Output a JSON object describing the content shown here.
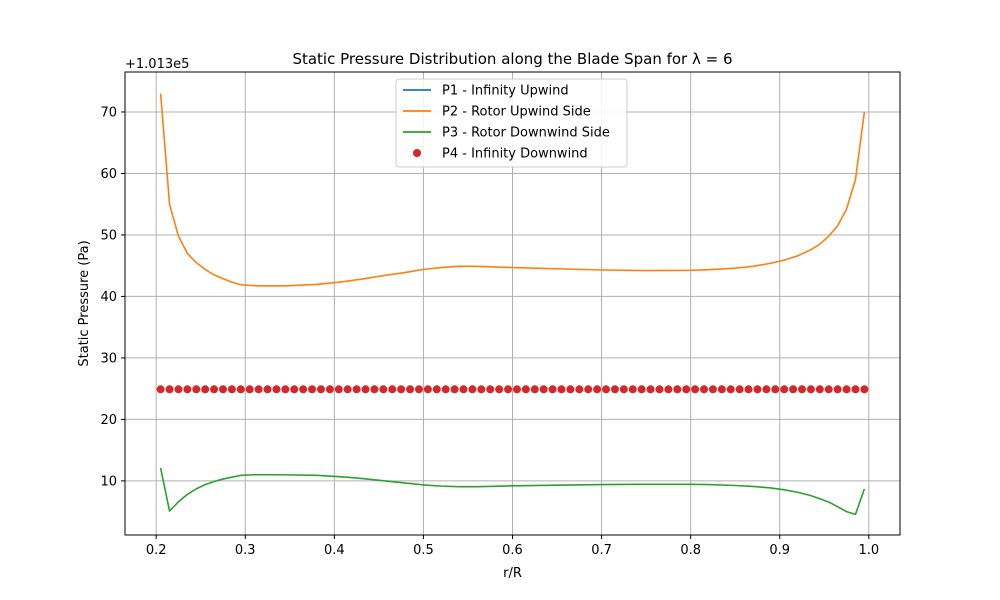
{
  "chart_data": {
    "type": "line",
    "title": "Static Pressure Distribution along the Blade Span for λ = 6",
    "xlabel": "r/R",
    "ylabel": "Static Pressure (Pa)",
    "y_offset_label": "+1.013e5",
    "xlim": [
      0.165,
      1.035
    ],
    "ylim": [
      1.2,
      76.5
    ],
    "x_ticks": [
      0.2,
      0.3,
      0.4,
      0.5,
      0.6,
      0.7,
      0.8,
      0.9,
      1.0
    ],
    "x_tick_labels": [
      "0.2",
      "0.3",
      "0.4",
      "0.5",
      "0.6",
      "0.7",
      "0.8",
      "0.9",
      "1.0"
    ],
    "y_ticks": [
      10,
      20,
      30,
      40,
      50,
      60,
      70
    ],
    "y_tick_labels": [
      "10",
      "20",
      "30",
      "40",
      "50",
      "60",
      "70"
    ],
    "grid": true,
    "legend_position": "top-center",
    "series": [
      {
        "name": "P1 - Infinity Upwind",
        "style": "line",
        "color": "#1f77b4",
        "x": [],
        "y": []
      },
      {
        "name": "P2 - Rotor Upwind Side",
        "style": "line",
        "color": "#ff7f0e",
        "x": [
          0.205,
          0.215,
          0.225,
          0.235,
          0.245,
          0.255,
          0.265,
          0.275,
          0.285,
          0.295,
          0.31,
          0.33,
          0.35,
          0.38,
          0.41,
          0.43,
          0.46,
          0.48,
          0.5,
          0.52,
          0.54,
          0.56,
          0.6,
          0.65,
          0.7,
          0.75,
          0.8,
          0.82,
          0.85,
          0.87,
          0.89,
          0.905,
          0.92,
          0.935,
          0.945,
          0.955,
          0.965,
          0.975,
          0.985,
          0.995
        ],
        "y": [
          73,
          55,
          49.8,
          47,
          45.5,
          44.4,
          43.5,
          42.9,
          42.3,
          41.9,
          41.75,
          41.7,
          41.75,
          41.95,
          42.4,
          42.8,
          43.5,
          43.9,
          44.4,
          44.7,
          44.9,
          44.9,
          44.7,
          44.5,
          44.3,
          44.2,
          44.25,
          44.35,
          44.6,
          44.9,
          45.4,
          45.9,
          46.6,
          47.6,
          48.5,
          49.8,
          51.5,
          54.2,
          59,
          70
        ]
      },
      {
        "name": "P3 - Rotor Downwind Side",
        "style": "line",
        "color": "#2ca02c",
        "x": [
          0.205,
          0.215,
          0.225,
          0.235,
          0.245,
          0.255,
          0.265,
          0.275,
          0.285,
          0.295,
          0.31,
          0.33,
          0.35,
          0.38,
          0.41,
          0.43,
          0.46,
          0.48,
          0.5,
          0.52,
          0.54,
          0.56,
          0.6,
          0.65,
          0.7,
          0.75,
          0.8,
          0.82,
          0.85,
          0.87,
          0.89,
          0.905,
          0.92,
          0.935,
          0.945,
          0.955,
          0.965,
          0.975,
          0.985,
          0.995
        ],
        "y": [
          12.1,
          5.1,
          6.6,
          7.8,
          8.7,
          9.4,
          9.9,
          10.3,
          10.6,
          10.9,
          11.0,
          11.0,
          10.98,
          10.9,
          10.65,
          10.4,
          9.95,
          9.65,
          9.35,
          9.15,
          9.05,
          9.05,
          9.2,
          9.3,
          9.4,
          9.45,
          9.45,
          9.4,
          9.25,
          9.1,
          8.85,
          8.55,
          8.15,
          7.6,
          7.1,
          6.55,
          5.8,
          5.0,
          4.55,
          8.7
        ]
      },
      {
        "name": "P4 - Infinity Downwind",
        "style": "markers",
        "color": "#d62728",
        "x_range": [
          0.205,
          0.995
        ],
        "count": 80,
        "y_value": 24.9
      }
    ]
  }
}
